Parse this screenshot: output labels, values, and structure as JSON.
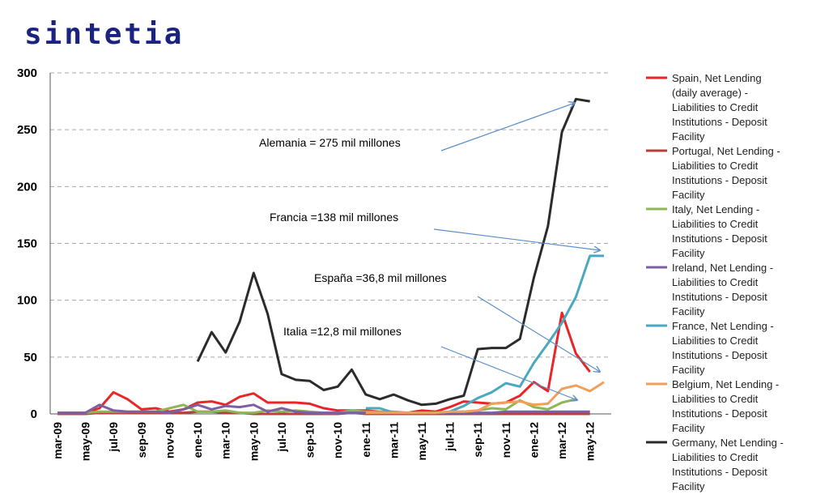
{
  "logo": {
    "text": "sintetia",
    "color": "#1a237e"
  },
  "chart_data": {
    "type": "line",
    "ylim": [
      0,
      300
    ],
    "yticks": [
      0,
      50,
      100,
      150,
      200,
      250,
      300
    ],
    "grid": true,
    "legend_position": "right",
    "x": [
      "mar-09",
      "apr-09",
      "may-09",
      "jun-09",
      "jul-09",
      "aug-09",
      "sep-09",
      "oct-09",
      "nov-09",
      "dec-09",
      "ene-10",
      "feb-10",
      "mar-10",
      "apr-10",
      "may-10",
      "jun-10",
      "jul-10",
      "aug-10",
      "sep-10",
      "oct-10",
      "nov-10",
      "dec-10",
      "ene-11",
      "feb-11",
      "mar-11",
      "apr-11",
      "may-11",
      "jun-11",
      "jul-11",
      "aug-11",
      "sep-11",
      "oct-11",
      "nov-11",
      "dec-11",
      "ene-12",
      "feb-12",
      "mar-12",
      "apr-12",
      "may-12",
      "jun-12"
    ],
    "xtick_labels": [
      "mar-09",
      "may-09",
      "jul-09",
      "sep-09",
      "nov-09",
      "ene-10",
      "mar-10",
      "may-10",
      "jul-10",
      "sep-10",
      "nov-10",
      "ene-11",
      "mar-11",
      "may-11",
      "jul-11",
      "sep-11",
      "nov-11",
      "ene-12",
      "mar-12",
      "may-12"
    ],
    "series": [
      {
        "name": "Spain, Net Lending (daily average) - Liabilities to Credit Institutions - Deposit Facility",
        "color": "#e8262a",
        "values": [
          1,
          1,
          1,
          5,
          19,
          13,
          4,
          5,
          2,
          4,
          10,
          11,
          8,
          15,
          18,
          10,
          10,
          10,
          9,
          5,
          3,
          3,
          3,
          2,
          1,
          1,
          3,
          2,
          6,
          11,
          10,
          9,
          10,
          16,
          28,
          20,
          89,
          53,
          37,
          null
        ]
      },
      {
        "name": "Portugal, Net Lending - Liabilities to Credit Institutions - Deposit Facility",
        "color": "#b5413a",
        "values": [
          0,
          0,
          0,
          1,
          1,
          1,
          1,
          1,
          1,
          1,
          2,
          2,
          1,
          1,
          0,
          0,
          0,
          0,
          0,
          0,
          0,
          1,
          0,
          0,
          0,
          0,
          0,
          0,
          0,
          0,
          0,
          0,
          0,
          0,
          0,
          0,
          0,
          0,
          0,
          null
        ]
      },
      {
        "name": "Italy, Net Lending - Liabilities to Credit Institutions - Deposit Facility",
        "color": "#8db657",
        "values": [
          1,
          1,
          1,
          2,
          2,
          2,
          2,
          2,
          5,
          8,
          2,
          2,
          3,
          1,
          1,
          3,
          2,
          3,
          2,
          1,
          1,
          3,
          2,
          2,
          2,
          1,
          1,
          1,
          2,
          2,
          3,
          5,
          4,
          12,
          6,
          4,
          10,
          13,
          null,
          null
        ]
      },
      {
        "name": "Ireland, Net Lending - Liabilities to Credit Institutions - Deposit Facility",
        "color": "#7d5fa3",
        "values": [
          1,
          1,
          1,
          8,
          3,
          2,
          2,
          2,
          1,
          4,
          8,
          4,
          7,
          6,
          8,
          2,
          5,
          2,
          1,
          1,
          1,
          1,
          1,
          1,
          1,
          1,
          1,
          1,
          1,
          1,
          1,
          1,
          2,
          2,
          2,
          2,
          2,
          2,
          2,
          null
        ]
      },
      {
        "name": "France, Net Lending - Liabilities to Credit Institutions - Deposit Facility",
        "color": "#4aa8c0",
        "values": [
          null,
          null,
          null,
          null,
          null,
          null,
          null,
          null,
          null,
          null,
          null,
          null,
          null,
          null,
          null,
          null,
          null,
          null,
          null,
          null,
          null,
          null,
          5,
          5,
          1,
          1,
          1,
          1,
          2,
          7,
          14,
          19,
          27,
          24,
          45,
          62,
          80,
          103,
          139,
          139
        ]
      },
      {
        "name": "Belgium, Net Lending - Liabilities to Credit Institutions - Deposit Facility",
        "color": "#f0a05a",
        "values": [
          null,
          null,
          null,
          null,
          null,
          null,
          null,
          null,
          null,
          null,
          null,
          null,
          null,
          null,
          null,
          null,
          null,
          null,
          null,
          null,
          null,
          null,
          1,
          1,
          1,
          1,
          1,
          1,
          2,
          2,
          3,
          9,
          10,
          11,
          8,
          9,
          22,
          25,
          20,
          28
        ]
      },
      {
        "name": "Germany, Net Lending - Liabilities to Credit Institutions - Deposit Facility",
        "color": "#2b2b2b",
        "values": [
          null,
          null,
          null,
          null,
          null,
          null,
          null,
          null,
          null,
          null,
          46,
          72,
          54,
          81,
          124,
          88,
          35,
          30,
          29,
          21,
          24,
          39,
          17,
          13,
          17,
          12,
          8,
          9,
          13,
          16,
          57,
          58,
          58,
          66,
          120,
          165,
          248,
          277,
          275,
          null
        ]
      }
    ],
    "annotations": [
      {
        "text": "Alemania = 275 mil millones",
        "from": [
          16,
          230
        ],
        "to": [
          31,
          272
        ]
      },
      {
        "text": "Francia =138 mil millones",
        "from": [
          19.6,
          164
        ],
        "to": [
          31,
          144
        ]
      },
      {
        "text": "España  =36,8 mil millones",
        "from": [
          21.9,
          103
        ],
        "to": [
          31,
          37
        ]
      },
      {
        "text": "Italia  =12,8 mil millones",
        "from": [
          19.2,
          59
        ],
        "to": [
          29.3,
          12
        ]
      }
    ]
  }
}
